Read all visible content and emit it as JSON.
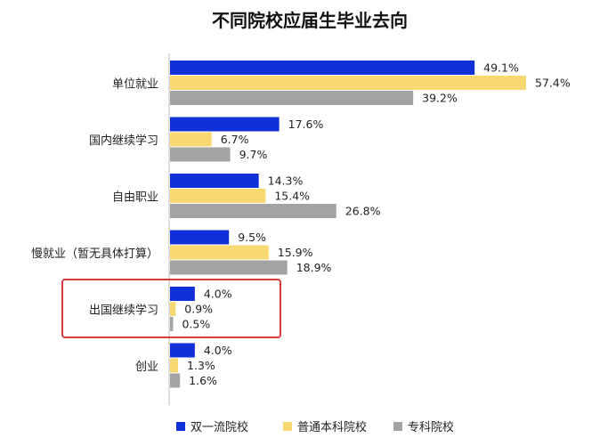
{
  "chart_data": {
    "type": "bar",
    "orientation": "horizontal",
    "title": "不同院校应届生毕业去向",
    "categories": [
      "单位就业",
      "国内继续学习",
      "自由职业",
      "慢就业（暂无具体打算）",
      "出国继续学习",
      "创业"
    ],
    "series": [
      {
        "name": "双一流院校",
        "values": [
          49.1,
          17.6,
          14.3,
          9.5,
          4.0,
          4.0
        ],
        "labels": [
          "49.1%",
          "17.6%",
          "14.3%",
          "9.5%",
          "4.0%",
          "4.0%"
        ]
      },
      {
        "name": "普通本科院校",
        "values": [
          57.4,
          6.7,
          15.4,
          15.9,
          0.9,
          1.3
        ],
        "labels": [
          "57.4%",
          "6.7%",
          "15.4%",
          "15.9%",
          "0.9%",
          "1.3%"
        ]
      },
      {
        "name": "专科院校",
        "values": [
          39.2,
          9.7,
          26.8,
          18.9,
          0.5,
          1.6
        ],
        "labels": [
          "39.2%",
          "9.7%",
          "26.8%",
          "18.9%",
          "0.5%",
          "1.6%"
        ]
      }
    ],
    "colors": [
      "#1230d8",
      "#f8d870",
      "#a3a3a3"
    ],
    "highlight_color": "#d93a3a",
    "highlighted_category": "出国继续学习",
    "legend_position": "bottom",
    "grid": false,
    "xlim": [
      0,
      57.4
    ]
  }
}
